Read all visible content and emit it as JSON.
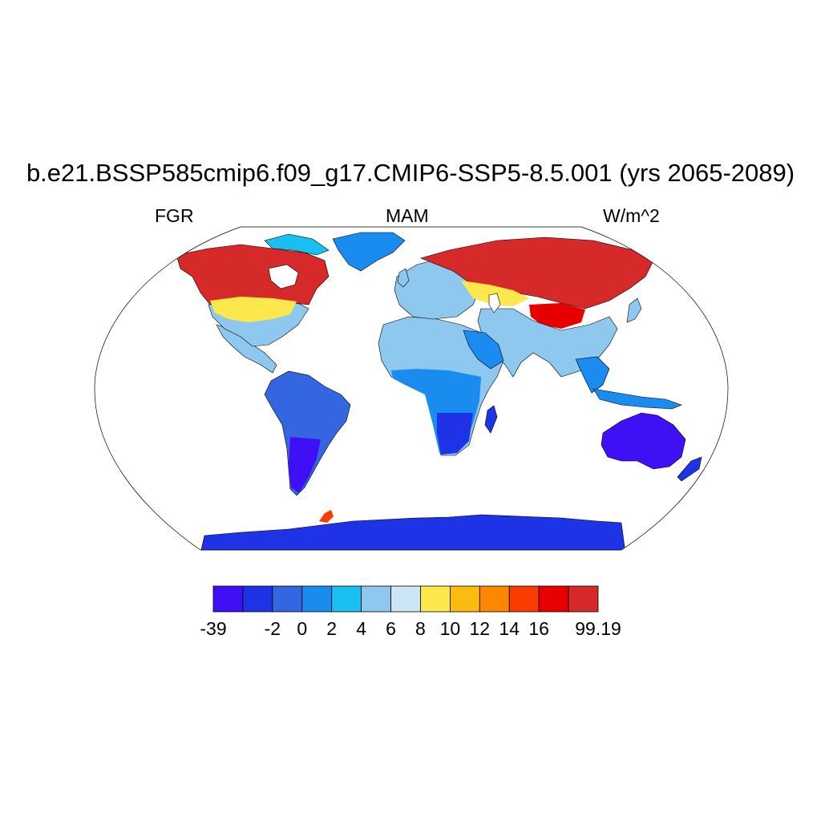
{
  "title": "b.e21.BSSP585cmip6.f09_g17.CMIP6-SSP5-8.5.001 (yrs 2065-2089)",
  "left_label": "FGR",
  "center_label": "MAM",
  "right_label": "W/m^2",
  "colorbar": {
    "colors": [
      "#3f10f5",
      "#1e33e5",
      "#3366e0",
      "#1a8cf0",
      "#19bff0",
      "#8fc8ef",
      "#cde6f5",
      "#fde84c",
      "#fbbb10",
      "#fd8800",
      "#fa3c00",
      "#e60000",
      "#d62a2a"
    ],
    "labels": [
      "-39",
      "-2",
      "0",
      "2",
      "4",
      "6",
      "8",
      "10",
      "12",
      "14",
      "16",
      "99.19"
    ]
  },
  "map_colors": {
    "ocean": "#ffffff",
    "coast": "#000000"
  }
}
